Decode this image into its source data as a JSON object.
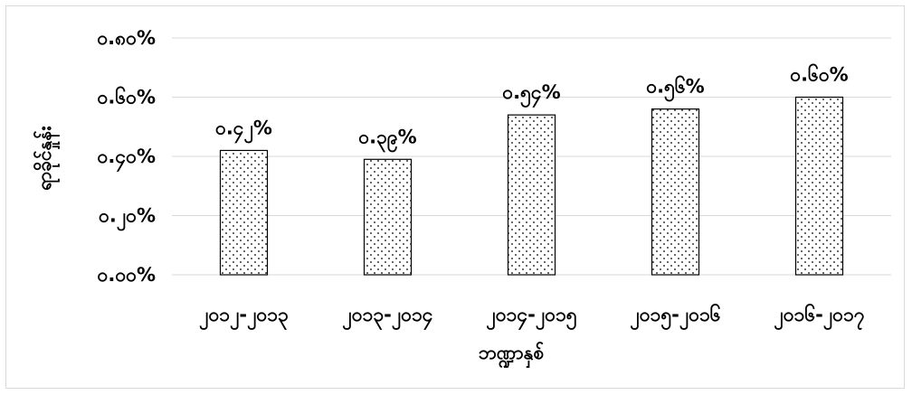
{
  "chart_data": {
    "type": "bar",
    "title": "",
    "xlabel": "ဘဏ္ဍာနှစ်",
    "ylabel": "ရာခိုင်နှုန်း",
    "categories": [
      "၂၀၁၂-၂၀၁၃",
      "၂၀၁၃-၂၀၁၄",
      "၂၀၁၄-၂၀၁၅",
      "၂၀၁၅-၂၀၁၆",
      "၂၀၁၆-၂၀၁၇"
    ],
    "values": [
      0.42,
      0.39,
      0.54,
      0.56,
      0.6
    ],
    "data_labels": [
      "၀.၄၂%",
      "၀.၃၉%",
      "၀.၅၄%",
      "၀.၅၆%",
      "၀.၆၀%"
    ],
    "ylim": [
      0,
      0.8
    ],
    "yticks": [
      0,
      0.2,
      0.4,
      0.6,
      0.8
    ],
    "ytick_labels": [
      "၀.၀၀%",
      "၀.၂၀%",
      "၀.၄၀%",
      "၀.၆၀%",
      "၀.၈၀%"
    ],
    "grid": true,
    "legend": "none",
    "bar_fill": "dotted",
    "colors": {
      "bar_edge": "#000000",
      "gridline": "#d9d9d9",
      "dot": "#000000"
    }
  }
}
